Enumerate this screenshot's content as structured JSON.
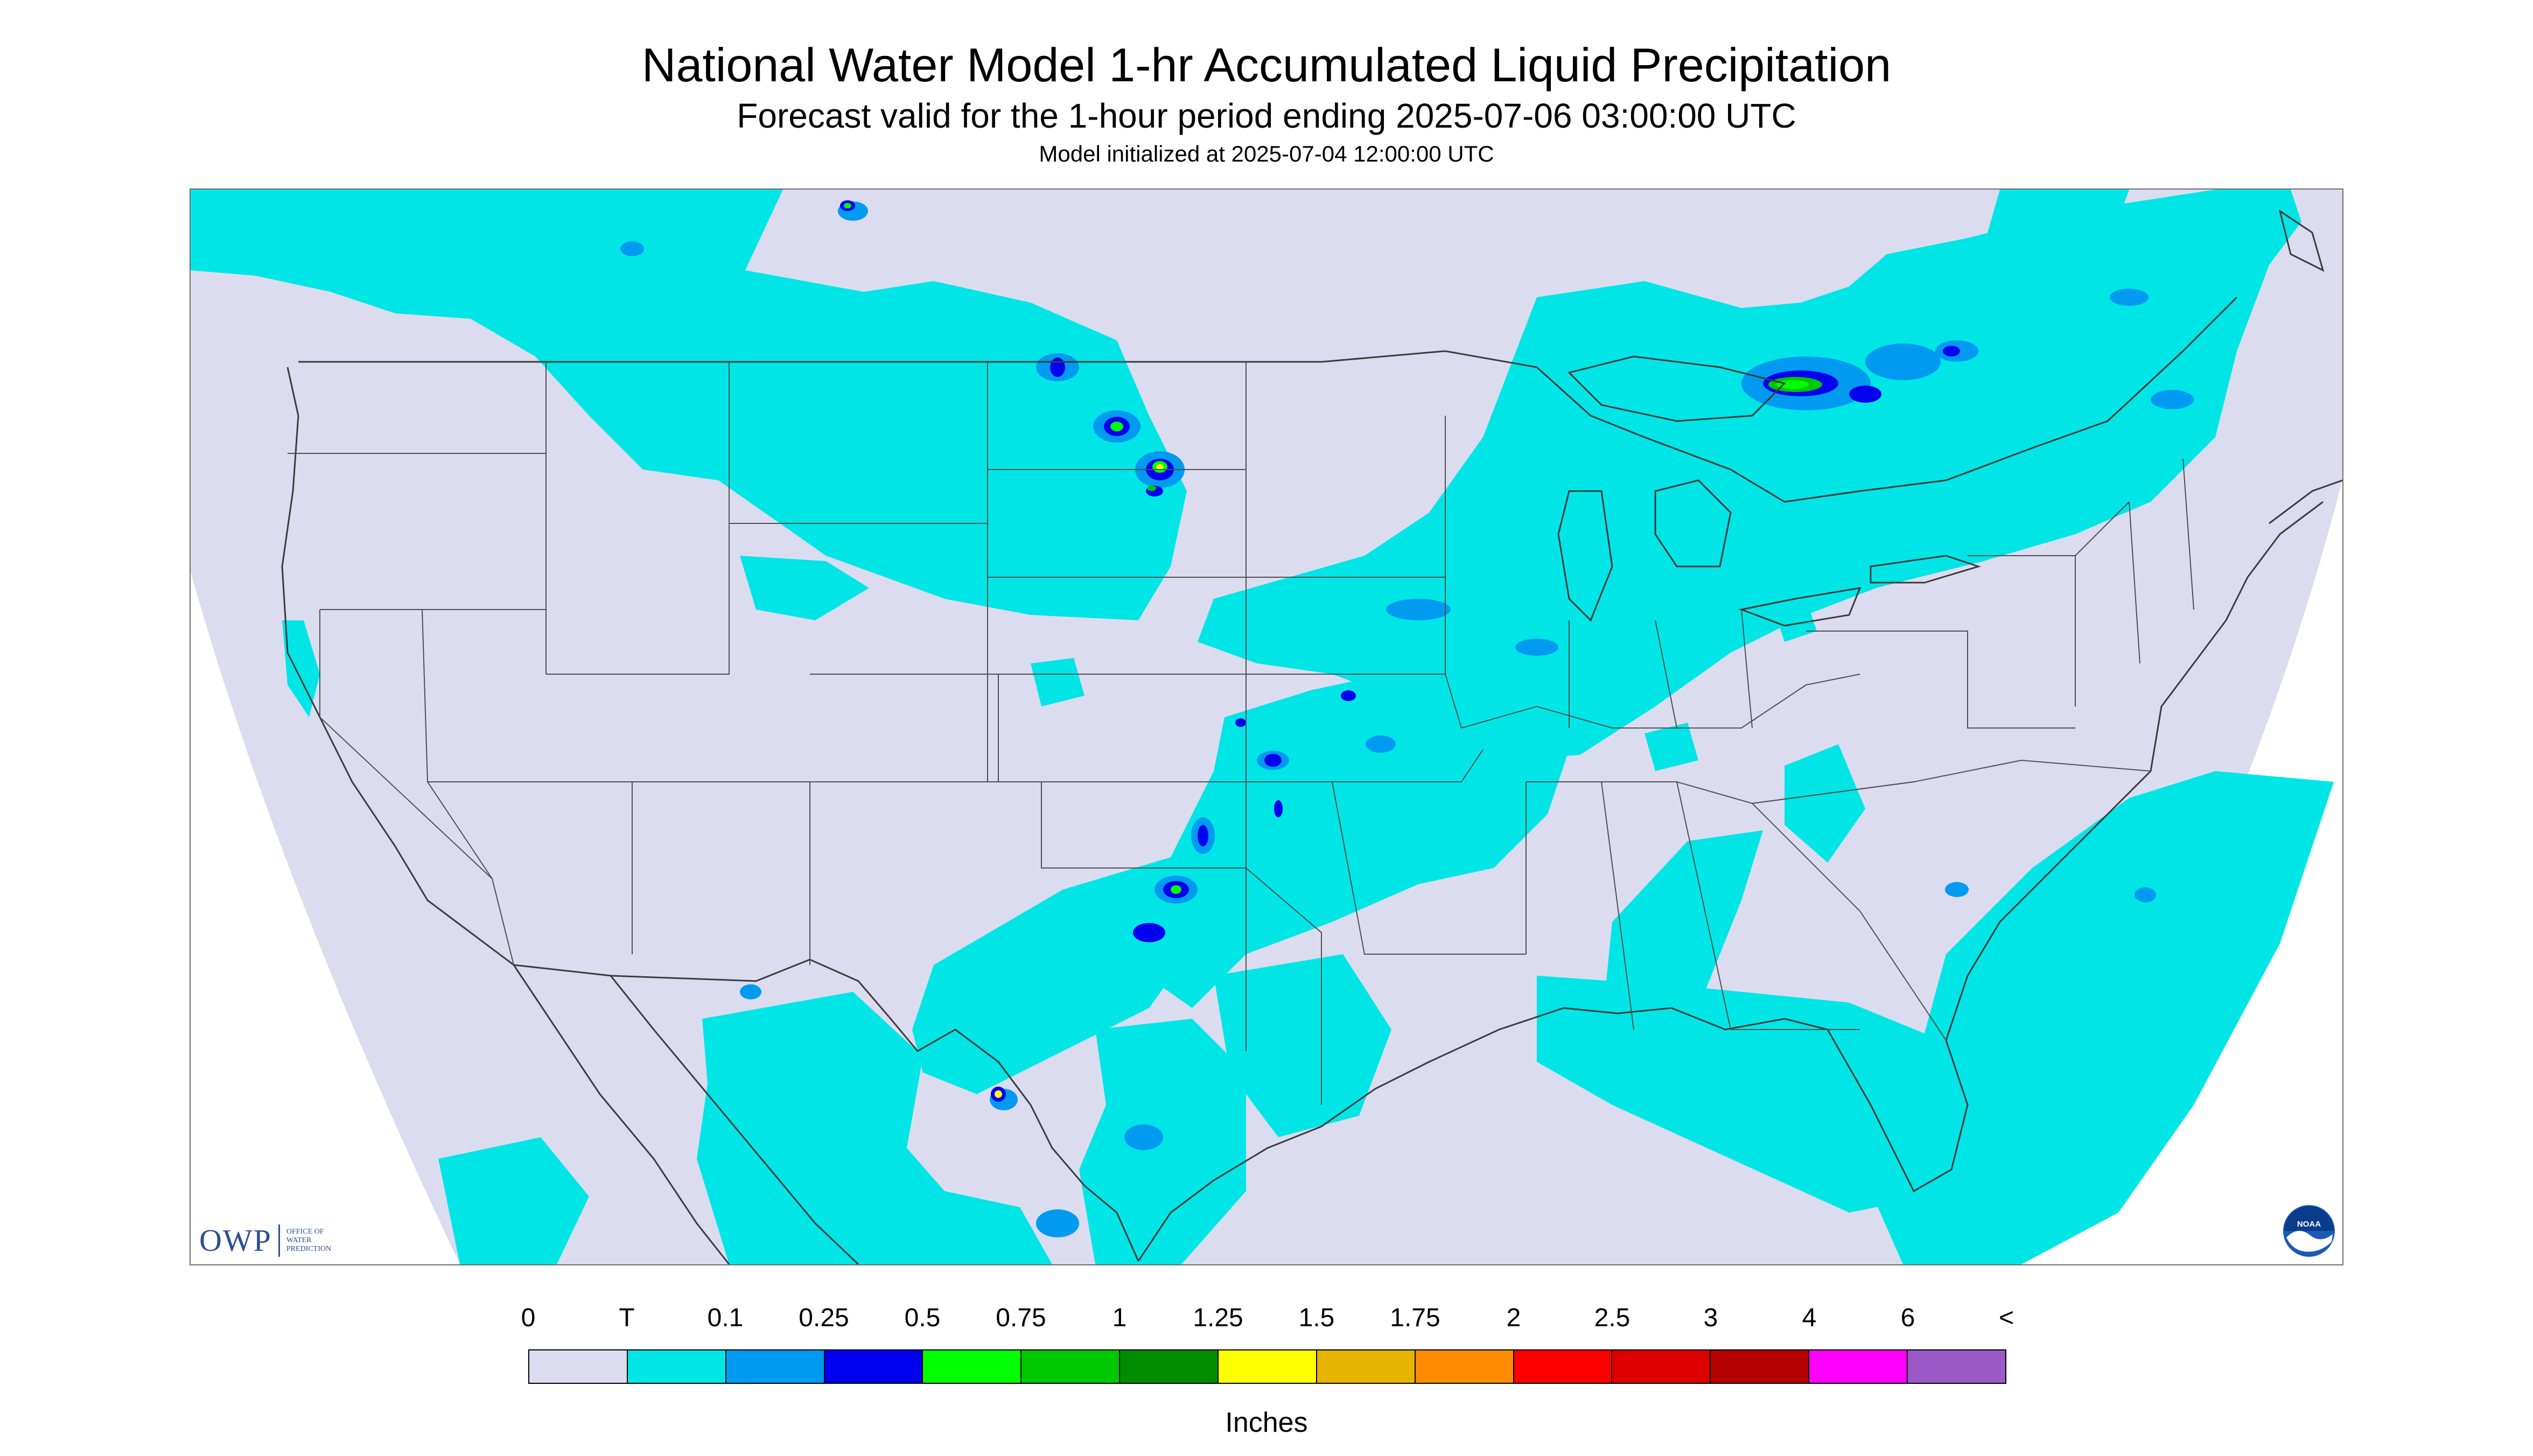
{
  "title": "National Water Model 1-hr Accumulated Liquid Precipitation",
  "subtitle": "Forecast valid for the 1-hour period ending 2025-07-06 03:00:00 UTC",
  "init_line": "Model initialized at 2025-07-04 12:00:00 UTC",
  "logo_owp": {
    "letters": "OWP",
    "subtitle": "OFFICE OF WATER PREDICTION"
  },
  "logo_noaa": {
    "text": "NOAA"
  },
  "legend": {
    "units": "Inches",
    "labels": [
      "0",
      "T",
      "0.1",
      "0.25",
      "0.5",
      "0.75",
      "1",
      "1.25",
      "1.5",
      "1.75",
      "2",
      "2.5",
      "3",
      "4",
      "6",
      "<"
    ],
    "colors": [
      "#dcdcf0",
      "#00e6e6",
      "#009bf0",
      "#0000f0",
      "#00ff00",
      "#00c800",
      "#008c00",
      "#ffff00",
      "#e6b400",
      "#ff8c00",
      "#ff0000",
      "#dc0000",
      "#b40000",
      "#ff00ff",
      "#9b59c8"
    ]
  },
  "map": {
    "no_data_color": "#ffffff",
    "background_color": "#dcdcf0",
    "boundary_color": "#3c3c3c"
  }
}
